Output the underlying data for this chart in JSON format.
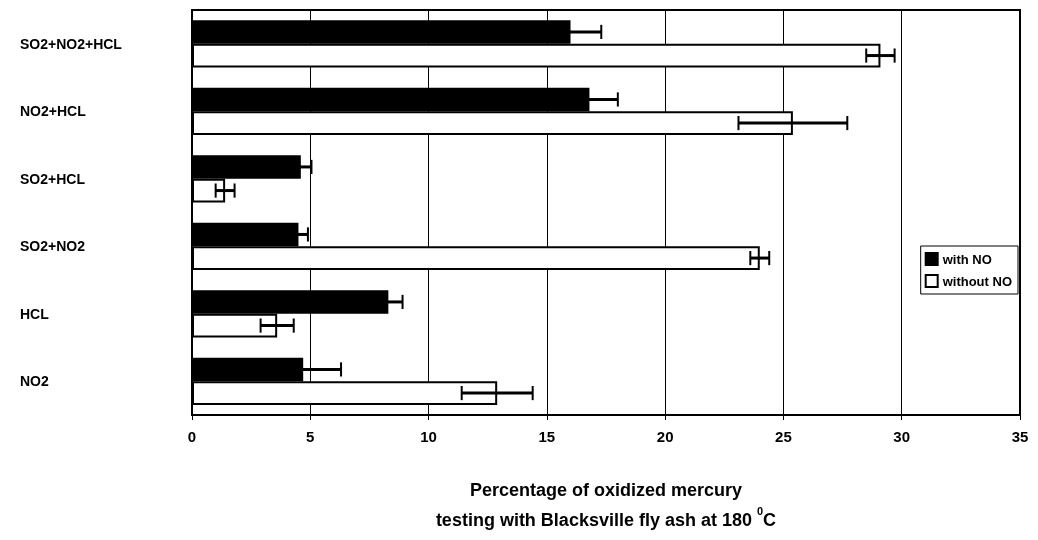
{
  "chart_data": {
    "type": "bar",
    "orientation": "horizontal",
    "xlabel": "Percentage of oxidized mercury\ntesting with Blacksville fly ash at 180 $^{0}$C",
    "categories": [
      "SO2+NO2+HCL",
      "NO2+HCL",
      "SO2+HCL",
      "SO2+NO2",
      "HCL",
      "NO2"
    ],
    "series": [
      {
        "name": "with NO",
        "color": "#000000",
        "values": [
          16.0,
          16.8,
          4.6,
          4.5,
          8.3,
          4.7
        ],
        "errors": [
          1.3,
          1.2,
          0.45,
          0.4,
          0.6,
          1.6
        ]
      },
      {
        "name": "without NO",
        "color": "#ffffff",
        "values": [
          29.1,
          25.4,
          1.4,
          24.0,
          3.6,
          12.9
        ],
        "errors": [
          0.6,
          2.3,
          0.4,
          0.4,
          0.7,
          1.5
        ]
      }
    ],
    "xlim": [
      0,
      35
    ],
    "xticks": [
      0,
      5,
      10,
      15,
      20,
      25,
      30,
      35
    ],
    "grid": "x",
    "legend": "right"
  }
}
